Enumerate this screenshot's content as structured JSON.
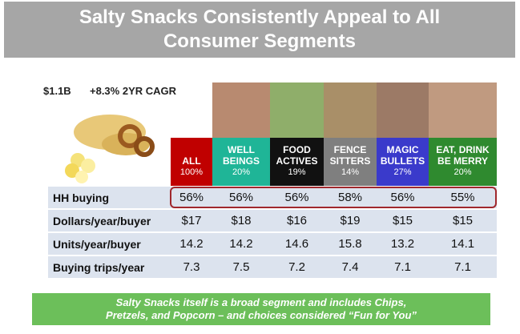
{
  "header": {
    "title": "Salty Snacks Consistently Appeal to All Consumer Segments"
  },
  "stats": {
    "size": "$1.1B",
    "growth": "+8.3%  2YR CAGR"
  },
  "segments": [
    {
      "name": "ALL",
      "share": "100%"
    },
    {
      "name": "WELL BEINGS",
      "share": "20%"
    },
    {
      "name": "FOOD ACTIVES",
      "share": "19%"
    },
    {
      "name": "FENCE SITTERS",
      "share": "14%"
    },
    {
      "name": "MAGIC BULLETS",
      "share": "27%"
    },
    {
      "name": "EAT, DRINK BE MERRY",
      "share": "20%"
    }
  ],
  "table": {
    "rows": [
      {
        "label": "HH buying",
        "values": [
          "56%",
          "56%",
          "56%",
          "58%",
          "56%",
          "55%"
        ]
      },
      {
        "label": "Dollars/year/buyer",
        "values": [
          "$17",
          "$18",
          "$16",
          "$19",
          "$15",
          "$15"
        ]
      },
      {
        "label": "Units/year/buyer",
        "values": [
          "14.2",
          "14.2",
          "14.6",
          "15.8",
          "13.2",
          "14.1"
        ]
      },
      {
        "label": "Buying trips/year",
        "values": [
          "7.3",
          "7.5",
          "7.2",
          "7.4",
          "7.1",
          "7.1"
        ]
      }
    ]
  },
  "footer": {
    "text": "Salty Snacks itself is a broad segment and includes Chips, Pretzels, and Popcorn – and choices considered “Fun for You”"
  }
}
